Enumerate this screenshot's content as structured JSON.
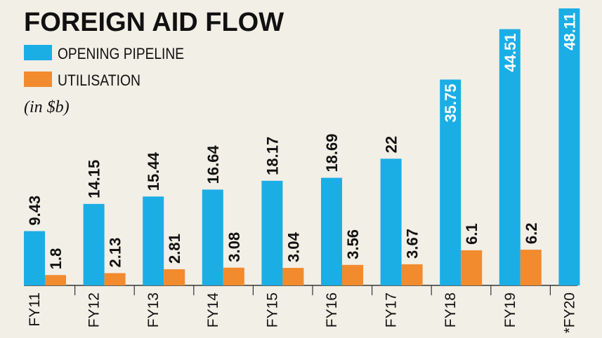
{
  "chart_data": {
    "type": "bar",
    "title": "FOREIGN AID FLOW",
    "unit": "(in $b)",
    "categories": [
      "FY11",
      "FY12",
      "FY13",
      "FY14",
      "FY15",
      "FY16",
      "FY17",
      "FY18",
      "FY19",
      "*FY20"
    ],
    "series": [
      {
        "name": "OPENING PIPELINE",
        "color": "#1aaee5",
        "values": [
          9.43,
          14.15,
          15.44,
          16.64,
          18.17,
          18.69,
          22,
          35.75,
          44.51,
          48.11
        ],
        "labels": [
          "9.43",
          "14.15",
          "15.44",
          "16.64",
          "18.17",
          "18.69",
          "22",
          "35.75",
          "44.51",
          "48.11"
        ]
      },
      {
        "name": "UTILISATION",
        "color": "#f28a2e",
        "values": [
          1.8,
          2.13,
          2.81,
          3.08,
          3.04,
          3.56,
          3.67,
          6.1,
          6.2,
          null
        ],
        "labels": [
          "1.8",
          "2.13",
          "2.81",
          "3.08",
          "3.04",
          "3.56",
          "3.67",
          "6.1",
          "6.2",
          null
        ]
      }
    ],
    "xlabel": "",
    "ylabel": "",
    "ylim": [
      0,
      48.11
    ],
    "grid": false,
    "legend_position": "top-left"
  }
}
